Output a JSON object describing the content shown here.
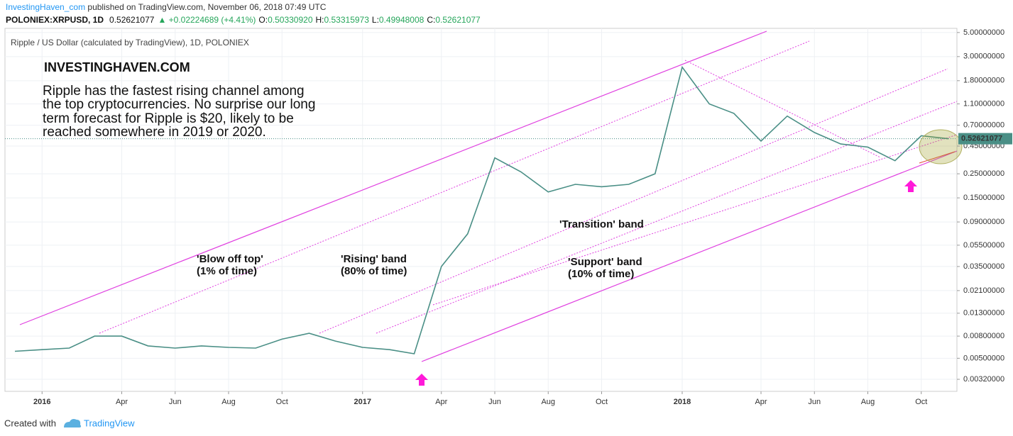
{
  "chart_data": {
    "type": "line",
    "publisher": "InvestingHaven_com",
    "published_text": "published on TradingView.com, November 06, 2018 07:49 UTC",
    "symbol": "POLONIEX:XRPUSD, 1D",
    "price_text": "0.52621077",
    "change_text": "▲ +0.02224689 (+4.41%)",
    "ohlc_labels": [
      "O:",
      "H:",
      "L:",
      "C:"
    ],
    "ohlc_values": [
      "0.50330920",
      "0.53315973",
      "0.49948008",
      "0.52621077"
    ],
    "title": "Ripple / US Dollar (calculated by TradingView), 1D, POLONIEX",
    "brand": "INVESTINGHAVEN.COM",
    "note_lines": [
      "Ripple has the fastest rising channel among",
      "the top cryptocurrencies. No surprise our long",
      "term forecast for Ripple is $20, likely to be",
      "reached somewhere in 2019 or 2020."
    ],
    "annotations": [
      "'Blow off top'",
      "(1% of time)",
      "'Rising' band",
      "(80% of time)",
      "'Transition' band",
      "'Support' band",
      "(10% of time)"
    ],
    "footer_text": "Created with",
    "footer_brand": "TradingView",
    "x": [
      "2015-12",
      "2016-01",
      "2016-02",
      "2016-03",
      "2016-04",
      "2016-05",
      "2016-06",
      "2016-07",
      "2016-08",
      "2016-09",
      "2016-10",
      "2016-11",
      "2016-12",
      "2017-01",
      "2017-02",
      "2017-03",
      "2017-04",
      "2017-05",
      "2017-06",
      "2017-07",
      "2017-08",
      "2017-09",
      "2017-10",
      "2017-11",
      "2017-12",
      "2018-01",
      "2018-02",
      "2018-03",
      "2018-04",
      "2018-05",
      "2018-06",
      "2018-07",
      "2018-08",
      "2018-09",
      "2018-10",
      "2018-11"
    ],
    "series": [
      {
        "name": "XRPUSD",
        "color": "#4a8f86",
        "values": [
          0.0058,
          0.006,
          0.0062,
          0.008,
          0.008,
          0.0065,
          0.0062,
          0.0065,
          0.0063,
          0.0062,
          0.0075,
          0.0085,
          0.0072,
          0.0063,
          0.006,
          0.0055,
          0.035,
          0.07,
          0.35,
          0.26,
          0.17,
          0.2,
          0.19,
          0.2,
          0.25,
          2.4,
          1.1,
          0.9,
          0.5,
          0.85,
          0.6,
          0.47,
          0.44,
          0.33,
          0.56,
          0.526
        ]
      }
    ],
    "last_price": 0.52621077,
    "log_scale": true,
    "grid": true,
    "xlim": [
      "2015-11",
      "2018-11"
    ],
    "xticks": [
      {
        "value": "2016-01",
        "label": "2016"
      },
      {
        "value": "2016-04",
        "label": "Apr"
      },
      {
        "value": "2016-06",
        "label": "Jun"
      },
      {
        "value": "2016-08",
        "label": "Aug"
      },
      {
        "value": "2016-10",
        "label": "Oct"
      },
      {
        "value": "2017-01",
        "label": "2017"
      },
      {
        "value": "2017-04",
        "label": "Apr"
      },
      {
        "value": "2017-06",
        "label": "Jun"
      },
      {
        "value": "2017-08",
        "label": "Aug"
      },
      {
        "value": "2017-10",
        "label": "Oct"
      },
      {
        "value": "2018-01",
        "label": "2018"
      },
      {
        "value": "2018-04",
        "label": "Apr"
      },
      {
        "value": "2018-06",
        "label": "Jun"
      },
      {
        "value": "2018-08",
        "label": "Aug"
      },
      {
        "value": "2018-10",
        "label": "Oct"
      }
    ],
    "ylim": [
      0.00248,
      5.46
    ],
    "yticks": [
      {
        "value": 5,
        "label": "5.00000000"
      },
      {
        "value": 3,
        "label": "3.00000000"
      },
      {
        "value": 1.8,
        "label": "1.80000000"
      },
      {
        "value": 1.1,
        "label": "1.10000000"
      },
      {
        "value": 0.7,
        "label": "0.70000000"
      },
      {
        "value": 0.45,
        "label": "0.45000000"
      },
      {
        "value": 0.25,
        "label": "0.25000000"
      },
      {
        "value": 0.15,
        "label": "0.15000000"
      },
      {
        "value": 0.09,
        "label": "0.09000000"
      },
      {
        "value": 0.055,
        "label": "0.05500000"
      },
      {
        "value": 0.035,
        "label": "0.03500000"
      },
      {
        "value": 0.021,
        "label": "0.02100000"
      },
      {
        "value": 0.013,
        "label": "0.01300000"
      },
      {
        "value": 0.008,
        "label": "0.00800000"
      },
      {
        "value": 0.005,
        "label": "0.00500000"
      },
      {
        "value": 0.0032,
        "label": "0.00320000"
      }
    ]
  }
}
